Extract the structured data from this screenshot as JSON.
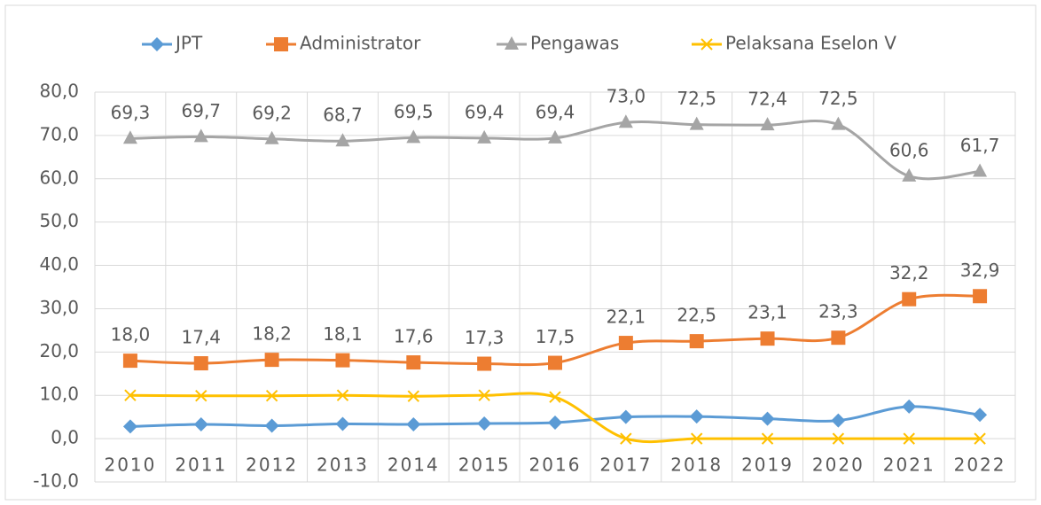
{
  "chart_data": {
    "type": "line",
    "categories": [
      "2010",
      "2011",
      "2012",
      "2013",
      "2014",
      "2015",
      "2016",
      "2017",
      "2018",
      "2019",
      "2020",
      "2021",
      "2022"
    ],
    "series": [
      {
        "name": "JPT",
        "color": "#5b9bd5",
        "marker": "diamond",
        "values": [
          2.8,
          3.3,
          3.0,
          3.4,
          3.3,
          3.5,
          3.7,
          5.0,
          5.1,
          4.6,
          4.2,
          7.4,
          5.5
        ]
      },
      {
        "name": "Administrator",
        "color": "#ed7d31",
        "marker": "square",
        "values": [
          18.0,
          17.4,
          18.2,
          18.1,
          17.6,
          17.3,
          17.5,
          22.1,
          22.5,
          23.1,
          23.3,
          32.2,
          32.9
        ],
        "value_labels": [
          "18,0",
          "17,4",
          "18,2",
          "18,1",
          "17,6",
          "17,3",
          "17,5",
          "22,1",
          "22,5",
          "23,1",
          "23,3",
          "32,2",
          "32,9"
        ]
      },
      {
        "name": "Pengawas",
        "color": "#a5a5a5",
        "marker": "triangle",
        "values": [
          69.3,
          69.7,
          69.2,
          68.7,
          69.5,
          69.4,
          69.4,
          73.0,
          72.5,
          72.4,
          72.5,
          60.6,
          61.7
        ],
        "value_labels": [
          "69,3",
          "69,7",
          "69,2",
          "68,7",
          "69,5",
          "69,4",
          "69,4",
          "73,0",
          "72,5",
          "72,4",
          "72,5",
          "60,6",
          "61,7"
        ]
      },
      {
        "name": "Pelaksana Eselon V",
        "color": "#ffc000",
        "marker": "x",
        "values": [
          10.0,
          9.9,
          9.9,
          10.0,
          9.8,
          10.0,
          9.6,
          0,
          0,
          0,
          0,
          0,
          0
        ]
      }
    ],
    "ylim": [
      -10,
      80
    ],
    "yticks": [
      {
        "value": -10,
        "label": "-10,0"
      },
      {
        "value": 0,
        "label": "0,0"
      },
      {
        "value": 10,
        "label": "10,0"
      },
      {
        "value": 20,
        "label": "20,0"
      },
      {
        "value": 30,
        "label": "30,0"
      },
      {
        "value": 40,
        "label": "40,0"
      },
      {
        "value": 50,
        "label": "50,0"
      },
      {
        "value": 60,
        "label": "60,0"
      },
      {
        "value": 70,
        "label": "70,0"
      },
      {
        "value": 80,
        "label": "80,0"
      }
    ],
    "grid": true
  }
}
